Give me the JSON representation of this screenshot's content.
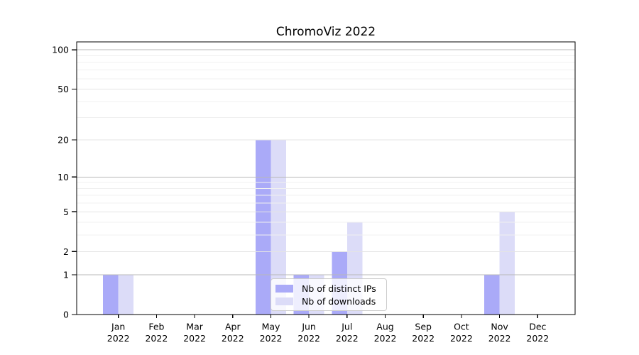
{
  "chart_data": {
    "type": "bar",
    "title": "ChromoViz 2022",
    "categories": [
      "Jan",
      "Feb",
      "Mar",
      "Apr",
      "May",
      "Jun",
      "Jul",
      "Aug",
      "Sep",
      "Oct",
      "Nov",
      "Dec"
    ],
    "year_label": "2022",
    "series": [
      {
        "name": "Nb of distinct IPs",
        "color": "#aaaaf8",
        "values": [
          1,
          0,
          0,
          0,
          20,
          1,
          2,
          0,
          0,
          0,
          1,
          0
        ]
      },
      {
        "name": "Nb of downloads",
        "color": "#dcdcf8",
        "values": [
          1,
          0,
          0,
          0,
          20,
          1,
          4,
          0,
          0,
          0,
          5,
          0
        ]
      }
    ],
    "yscale": "log1p",
    "ylim": [
      0,
      100
    ],
    "yticks": [
      0,
      1,
      2,
      5,
      10,
      20,
      50,
      100
    ],
    "gridlines": {
      "decades": [
        1,
        10,
        100
      ],
      "labeled": [
        2,
        5,
        20,
        50
      ],
      "minor": [
        3,
        4,
        6,
        7,
        8,
        9,
        30,
        40,
        60,
        70,
        80,
        90
      ]
    },
    "legend_position": "lower center",
    "grid": true
  },
  "colors": {
    "background": "#ffffff",
    "spine": "#000000",
    "tick_label": "#000000",
    "grid_decade": "#b8b8b8",
    "grid_labeled": "#e4e4e4",
    "grid_minor": "#f0f0f0",
    "legend_border": "#cccccc",
    "legend_bg": "rgba(255,255,255,0.8)"
  }
}
